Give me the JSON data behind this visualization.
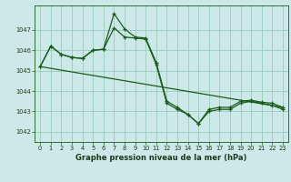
{
  "title": "Graphe pression niveau de la mer (hPa)",
  "bg_color": "#cce8e8",
  "grid_color": "#99ccbb",
  "line_color": "#1a5c1a",
  "ylim": [
    1041.5,
    1048.2
  ],
  "yticks": [
    1042,
    1043,
    1044,
    1045,
    1046,
    1047
  ],
  "xlim": [
    -0.5,
    23.5
  ],
  "xticks": [
    0,
    1,
    2,
    3,
    4,
    5,
    6,
    7,
    8,
    9,
    10,
    11,
    12,
    13,
    14,
    15,
    16,
    17,
    18,
    19,
    20,
    21,
    22,
    23
  ],
  "series1_x": [
    0,
    1,
    2,
    3,
    4,
    5,
    6,
    7,
    8,
    9,
    10,
    11,
    12,
    13,
    14,
    15,
    16,
    17,
    18,
    19,
    20,
    21,
    22,
    23
  ],
  "series1_y": [
    1045.2,
    1046.2,
    1045.8,
    1045.65,
    1045.6,
    1046.0,
    1046.05,
    1047.8,
    1047.05,
    1046.65,
    1046.6,
    1045.4,
    1043.5,
    1043.2,
    1042.85,
    1042.4,
    1043.1,
    1043.2,
    1043.2,
    1043.5,
    1043.55,
    1043.45,
    1043.4,
    1043.2
  ],
  "series2_x": [
    0,
    1,
    2,
    3,
    4,
    5,
    6,
    7,
    8,
    9,
    10,
    11,
    12,
    13,
    14,
    15,
    16,
    17,
    18,
    19,
    20,
    21,
    22,
    23
  ],
  "series2_y": [
    1045.2,
    1046.2,
    1045.8,
    1045.65,
    1045.6,
    1046.0,
    1046.05,
    1047.1,
    1046.65,
    1046.6,
    1046.55,
    1045.3,
    1043.4,
    1043.1,
    1042.85,
    1042.4,
    1043.0,
    1043.1,
    1043.1,
    1043.4,
    1043.5,
    1043.4,
    1043.3,
    1043.1
  ],
  "series3_x": [
    0,
    23
  ],
  "series3_y": [
    1045.2,
    1043.2
  ],
  "label_fontsize": 5.5,
  "tick_fontsize": 4.8,
  "xlabel_fontsize": 6.0
}
